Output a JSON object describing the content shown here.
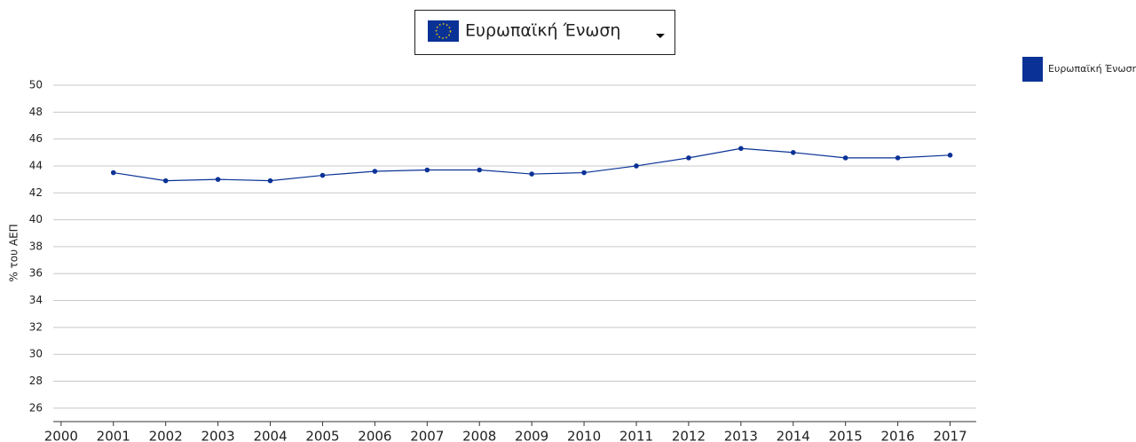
{
  "selector": {
    "selected": "Ευρωπαϊκή Ένωση"
  },
  "chart_data": {
    "type": "line",
    "y_label": "% του ΑΕΠ",
    "x": [
      2001,
      2002,
      2003,
      2004,
      2005,
      2006,
      2007,
      2008,
      2009,
      2010,
      2011,
      2012,
      2013,
      2014,
      2015,
      2016,
      2017
    ],
    "series": [
      {
        "name": "Ευρωπαϊκή Ένωση",
        "color": "#0a3296",
        "values": [
          43.5,
          42.9,
          43.0,
          42.9,
          43.3,
          43.6,
          43.7,
          43.7,
          43.4,
          43.5,
          44.0,
          44.6,
          45.3,
          45.0,
          44.6,
          44.6,
          44.8
        ]
      }
    ],
    "xlim": [
      1999.85,
      2017.5
    ],
    "xticks": [
      2000,
      2001,
      2002,
      2003,
      2004,
      2005,
      2006,
      2007,
      2008,
      2009,
      2010,
      2011,
      2012,
      2013,
      2014,
      2015,
      2016,
      2017
    ],
    "ylim": [
      25,
      50
    ],
    "yticks": [
      26,
      28,
      30,
      32,
      34,
      36,
      38,
      40,
      42,
      44,
      46,
      48,
      50
    ],
    "grid": true,
    "legend": "top-right"
  }
}
